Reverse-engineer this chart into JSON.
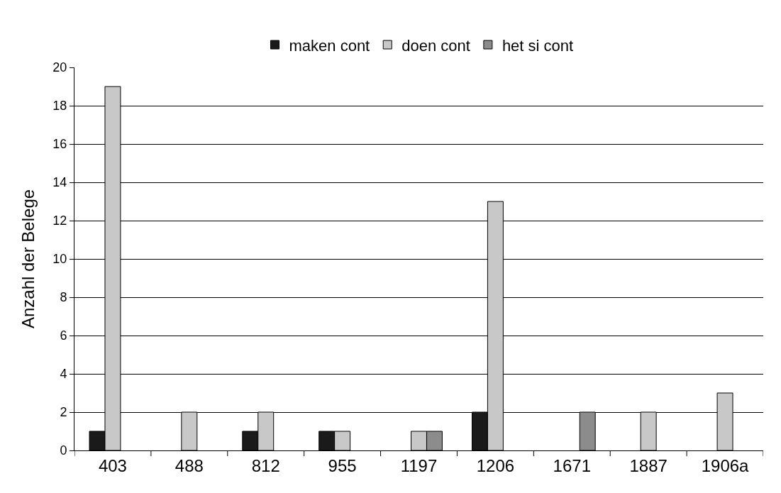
{
  "chart_data": {
    "type": "bar",
    "ylabel": "Anzahl der Belege",
    "categories": [
      "403",
      "488",
      "812",
      "955",
      "1197",
      "1206",
      "1671",
      "1887",
      "1906a"
    ],
    "series": [
      {
        "name": "maken cont",
        "color": "#1a1a1a",
        "values": [
          1,
          null,
          1,
          1,
          null,
          2,
          null,
          null,
          null
        ]
      },
      {
        "name": "doen cont",
        "color": "#c8c8c8",
        "values": [
          19,
          2,
          2,
          1,
          1,
          13,
          null,
          2,
          3
        ]
      },
      {
        "name": "het si cont",
        "color": "#8c8c8c",
        "values": [
          null,
          null,
          null,
          null,
          1,
          null,
          2,
          null,
          null
        ]
      }
    ],
    "ylim": [
      0,
      20
    ],
    "yticks": [
      0,
      2,
      4,
      6,
      8,
      10,
      12,
      14,
      16,
      18,
      20
    ],
    "grid": "y",
    "legend": "top"
  }
}
